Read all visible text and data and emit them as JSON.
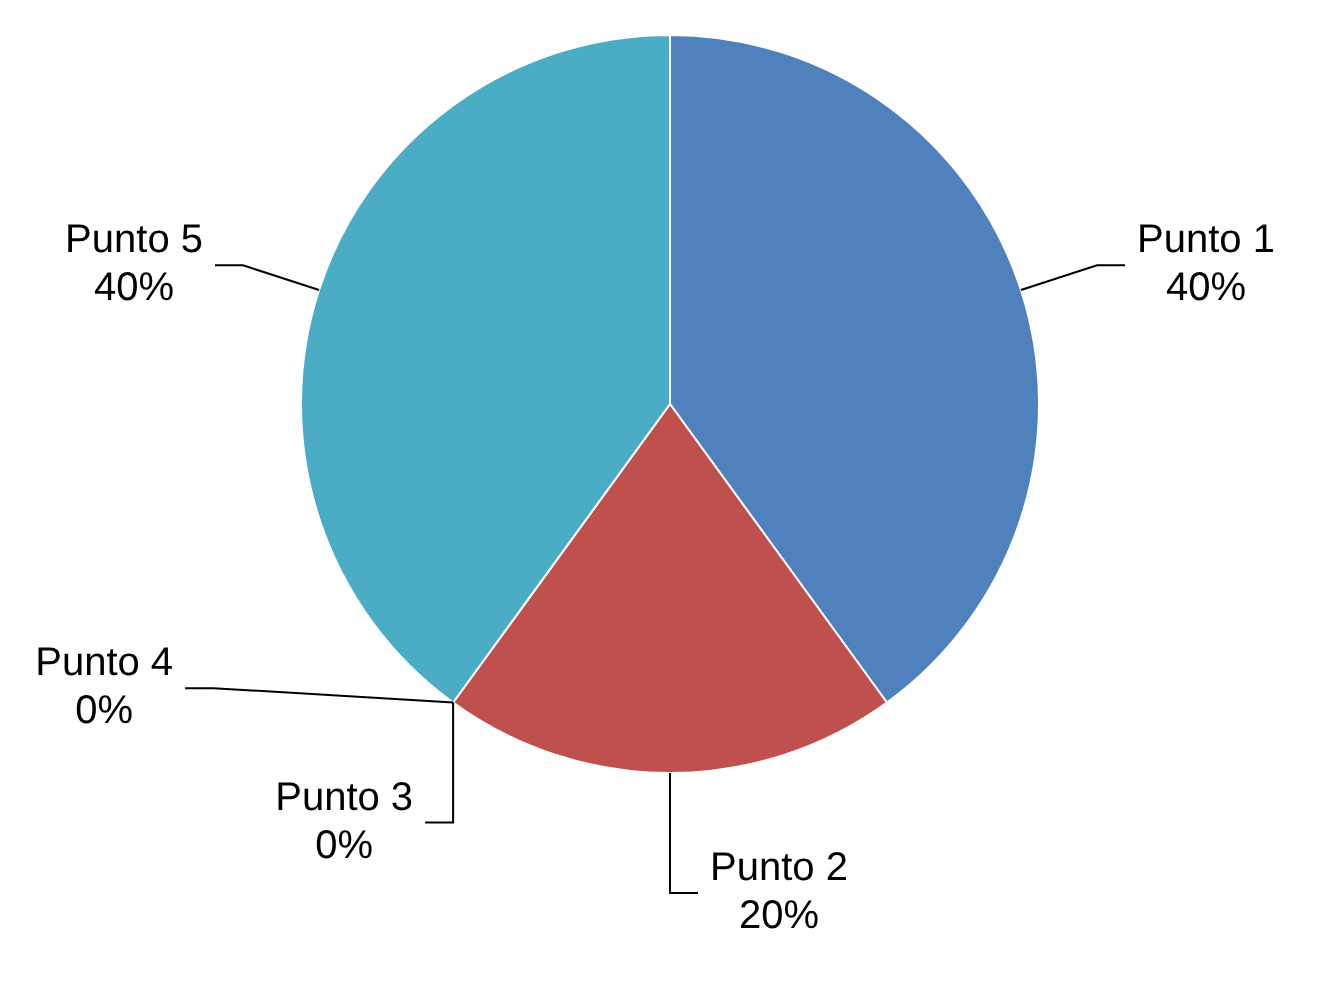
{
  "chart_data": {
    "type": "pie",
    "categories": [
      "Punto 1",
      "Punto 2",
      "Punto 3",
      "Punto 4",
      "Punto 5"
    ],
    "values": [
      40,
      20,
      0,
      0,
      40
    ],
    "value_labels": [
      "40%",
      "20%",
      "0%",
      "0%",
      "40%"
    ],
    "colors": [
      "#4f81bd",
      "#c0504d",
      "#9bbb59",
      "#8064a2",
      "#4bacc6"
    ],
    "legend": false
  }
}
